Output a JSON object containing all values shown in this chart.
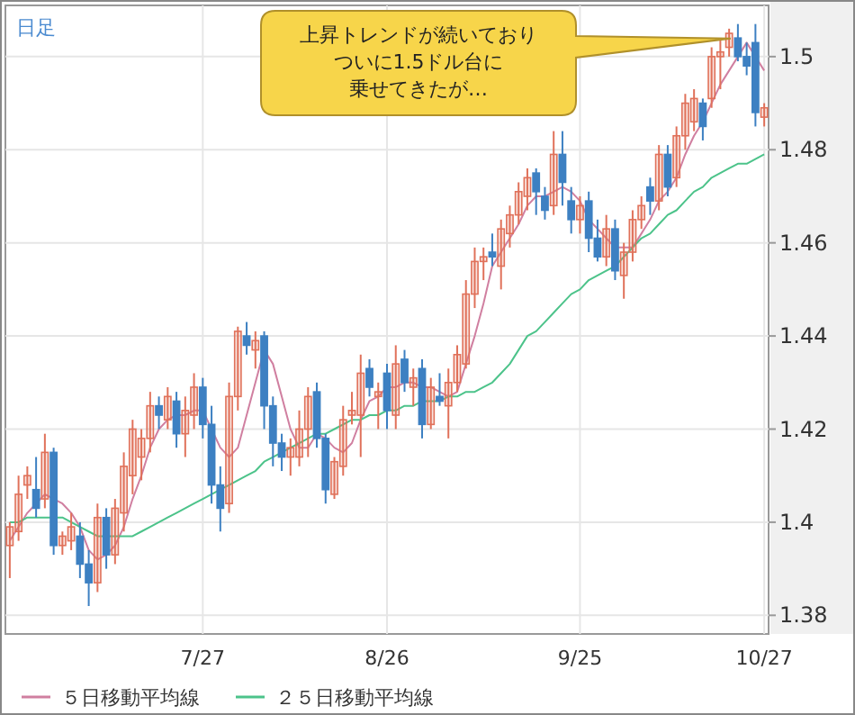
{
  "chart_data": {
    "type": "candlestick",
    "subtitle": "日足",
    "annotations": [
      "上昇トレンドが続いており",
      "ついに1.5ドル台に",
      "乗せてきたが…"
    ],
    "categories": [
      null,
      null,
      null,
      null,
      null,
      null,
      null,
      null,
      null,
      null,
      null,
      null,
      null,
      null,
      null,
      null,
      null,
      null,
      null,
      null,
      null,
      null,
      "7/27",
      null,
      null,
      null,
      null,
      null,
      null,
      null,
      null,
      null,
      null,
      null,
      null,
      null,
      null,
      null,
      null,
      null,
      null,
      null,
      null,
      "8/26",
      null,
      null,
      null,
      null,
      null,
      null,
      null,
      null,
      null,
      null,
      null,
      null,
      null,
      null,
      null,
      null,
      null,
      null,
      null,
      null,
      null,
      "9/25",
      null,
      null,
      null,
      null,
      null,
      null,
      null,
      null,
      null,
      null,
      null,
      null,
      null,
      null,
      null,
      null,
      null,
      null,
      null,
      null,
      "10/27"
    ],
    "colors": [
      "#e0715a",
      "#e0715a",
      "#e0715a",
      "#3d80c2",
      "#e0715a",
      "#3d80c2",
      "#e0715a",
      "#e0715a",
      "#3d80c2",
      "#3d80c2",
      "#e0715a",
      "#3d80c2",
      "#e0715a",
      "#e0715a",
      "#e0715a",
      "#e0715a",
      "#e0715a",
      "#3d80c2",
      "#e0715a",
      "#3d80c2",
      "#e0715a",
      "#e0715a",
      "#3d80c2",
      "#3d80c2",
      "#3d80c2",
      "#e0715a",
      "#e0715a",
      "#3d80c2",
      "#e0715a",
      "#3d80c2",
      "#3d80c2",
      "#3d80c2",
      "#e0715a",
      "#e0715a",
      "#e0715a",
      "#3d80c2",
      "#3d80c2",
      "#e0715a",
      "#e0715a",
      "#e0715a",
      "#e0715a",
      "#3d80c2",
      "#e0715a",
      "#3d80c2",
      "#e0715a",
      "#3d80c2",
      "#e0715a",
      "#3d80c2",
      "#e0715a",
      "#3d80c2",
      "#e0715a",
      "#e0715a",
      "#e0715a",
      "#e0715a",
      "#e0715a",
      "#3d80c2",
      "#e0715a",
      "#e0715a",
      "#e0715a",
      "#e0715a",
      "#3d80c2",
      "#3d80c2",
      "#e0715a",
      "#3d80c2",
      "#3d80c2",
      "#e0715a",
      "#3d80c2",
      "#3d80c2",
      "#e0715a",
      "#3d80c2",
      "#e0715a",
      "#e0715a",
      "#e0715a",
      "#3d80c2",
      "#e0715a",
      "#3d80c2",
      "#e0715a",
      "#e0715a",
      "#e0715a",
      "#3d80c2",
      "#e0715a",
      "#e0715a",
      "#e0715a",
      "#3d80c2",
      "#3d80c2",
      "#3d80c2",
      "#e0715a"
    ],
    "ohlc": [
      [
        1.395,
        1.4,
        1.388,
        1.399
      ],
      [
        1.398,
        1.41,
        1.396,
        1.406
      ],
      [
        1.408,
        1.412,
        1.405,
        1.41
      ],
      [
        1.407,
        1.414,
        1.401,
        1.403
      ],
      [
        1.405,
        1.419,
        1.403,
        1.415
      ],
      [
        1.415,
        1.416,
        1.393,
        1.395
      ],
      [
        1.395,
        1.398,
        1.393,
        1.397
      ],
      [
        1.396,
        1.402,
        1.394,
        1.399
      ],
      [
        1.397,
        1.4,
        1.388,
        1.391
      ],
      [
        1.391,
        1.394,
        1.382,
        1.387
      ],
      [
        1.387,
        1.404,
        1.385,
        1.401
      ],
      [
        1.401,
        1.403,
        1.39,
        1.393
      ],
      [
        1.393,
        1.405,
        1.391,
        1.403
      ],
      [
        1.402,
        1.415,
        1.398,
        1.412
      ],
      [
        1.41,
        1.422,
        1.406,
        1.42
      ],
      [
        1.414,
        1.42,
        1.409,
        1.418
      ],
      [
        1.418,
        1.428,
        1.415,
        1.425
      ],
      [
        1.425,
        1.427,
        1.42,
        1.423
      ],
      [
        1.422,
        1.429,
        1.42,
        1.427
      ],
      [
        1.426,
        1.428,
        1.416,
        1.419
      ],
      [
        1.419,
        1.427,
        1.414,
        1.424
      ],
      [
        1.423,
        1.432,
        1.42,
        1.429
      ],
      [
        1.429,
        1.431,
        1.418,
        1.421
      ],
      [
        1.421,
        1.425,
        1.404,
        1.408
      ],
      [
        1.408,
        1.412,
        1.398,
        1.403
      ],
      [
        1.404,
        1.43,
        1.402,
        1.427
      ],
      [
        1.427,
        1.442,
        1.424,
        1.441
      ],
      [
        1.44,
        1.443,
        1.436,
        1.438
      ],
      [
        1.437,
        1.441,
        1.433,
        1.439
      ],
      [
        1.44,
        1.441,
        1.42,
        1.425
      ],
      [
        1.425,
        1.427,
        1.412,
        1.417
      ],
      [
        1.417,
        1.419,
        1.411,
        1.414
      ],
      [
        1.414,
        1.418,
        1.41,
        1.416
      ],
      [
        1.414,
        1.424,
        1.412,
        1.42
      ],
      [
        1.42,
        1.429,
        1.414,
        1.427
      ],
      [
        1.428,
        1.43,
        1.416,
        1.418
      ],
      [
        1.418,
        1.419,
        1.404,
        1.407
      ],
      [
        1.406,
        1.414,
        1.405,
        1.413
      ],
      [
        1.412,
        1.425,
        1.41,
        1.422
      ],
      [
        1.423,
        1.428,
        1.421,
        1.424
      ],
      [
        1.423,
        1.436,
        1.414,
        1.432
      ],
      [
        1.433,
        1.435,
        1.427,
        1.429
      ],
      [
        1.427,
        1.43,
        1.42,
        1.428
      ],
      [
        1.432,
        1.434,
        1.42,
        1.424
      ],
      [
        1.423,
        1.438,
        1.42,
        1.434
      ],
      [
        1.435,
        1.437,
        1.428,
        1.43
      ],
      [
        1.429,
        1.433,
        1.425,
        1.431
      ],
      [
        1.433,
        1.435,
        1.418,
        1.421
      ],
      [
        1.421,
        1.431,
        1.42,
        1.429
      ],
      [
        1.427,
        1.432,
        1.425,
        1.426
      ],
      [
        1.425,
        1.433,
        1.418,
        1.43
      ],
      [
        1.43,
        1.438,
        1.428,
        1.436
      ],
      [
        1.434,
        1.452,
        1.433,
        1.449
      ],
      [
        1.449,
        1.459,
        1.446,
        1.456
      ],
      [
        1.456,
        1.459,
        1.452,
        1.457
      ],
      [
        1.458,
        1.462,
        1.455,
        1.457
      ],
      [
        1.455,
        1.465,
        1.45,
        1.463
      ],
      [
        1.462,
        1.468,
        1.459,
        1.466
      ],
      [
        1.466,
        1.473,
        1.464,
        1.471
      ],
      [
        1.47,
        1.476,
        1.467,
        1.474
      ],
      [
        1.475,
        1.476,
        1.466,
        1.471
      ],
      [
        1.47,
        1.472,
        1.465,
        1.467
      ],
      [
        1.468,
        1.484,
        1.466,
        1.479
      ],
      [
        1.479,
        1.484,
        1.468,
        1.473
      ],
      [
        1.469,
        1.472,
        1.462,
        1.465
      ],
      [
        1.465,
        1.47,
        1.462,
        1.468
      ],
      [
        1.469,
        1.471,
        1.458,
        1.461
      ],
      [
        1.461,
        1.465,
        1.456,
        1.457
      ],
      [
        1.457,
        1.466,
        1.455,
        1.463
      ],
      [
        1.463,
        1.465,
        1.452,
        1.454
      ],
      [
        1.453,
        1.46,
        1.448,
        1.458
      ],
      [
        1.458,
        1.467,
        1.456,
        1.465
      ],
      [
        1.465,
        1.47,
        1.463,
        1.468
      ],
      [
        1.472,
        1.474,
        1.466,
        1.469
      ],
      [
        1.469,
        1.481,
        1.467,
        1.479
      ],
      [
        1.479,
        1.481,
        1.47,
        1.472
      ],
      [
        1.474,
        1.485,
        1.472,
        1.483
      ],
      [
        1.483,
        1.492,
        1.48,
        1.49
      ],
      [
        1.486,
        1.493,
        1.484,
        1.491
      ],
      [
        1.49,
        1.491,
        1.482,
        1.485
      ],
      [
        1.491,
        1.502,
        1.489,
        1.5
      ],
      [
        1.5,
        1.504,
        1.493,
        1.501
      ],
      [
        1.502,
        1.506,
        1.5,
        1.505
      ],
      [
        1.504,
        1.507,
        1.499,
        1.5
      ],
      [
        1.5,
        1.503,
        1.496,
        1.498
      ],
      [
        1.503,
        1.507,
        1.485,
        1.488
      ],
      [
        1.487,
        1.49,
        1.485,
        1.489
      ]
    ],
    "series": [
      {
        "type": "line",
        "name": "５日移動平均線",
        "color": "#d07fa0",
        "values": [
          1.396,
          1.399,
          1.402,
          1.404,
          1.406,
          1.405,
          1.404,
          1.402,
          1.399,
          1.394,
          1.392,
          1.393,
          1.395,
          1.399,
          1.405,
          1.41,
          1.416,
          1.42,
          1.422,
          1.423,
          1.423,
          1.424,
          1.424,
          1.42,
          1.416,
          1.414,
          1.416,
          1.423,
          1.43,
          1.437,
          1.434,
          1.427,
          1.42,
          1.416,
          1.416,
          1.419,
          1.418,
          1.416,
          1.415,
          1.417,
          1.422,
          1.426,
          1.427,
          1.429,
          1.429,
          1.43,
          1.43,
          1.429,
          1.429,
          1.428,
          1.427,
          1.428,
          1.434,
          1.44,
          1.447,
          1.455,
          1.458,
          1.461,
          1.464,
          1.468,
          1.47,
          1.47,
          1.471,
          1.472,
          1.471,
          1.469,
          1.465,
          1.463,
          1.461,
          1.459,
          1.459,
          1.459,
          1.462,
          1.465,
          1.469,
          1.471,
          1.474,
          1.479,
          1.483,
          1.486,
          1.49,
          1.494,
          1.497,
          1.5,
          1.503,
          1.5,
          1.497
        ]
      },
      {
        "type": "line",
        "name": "２５日移動平均線",
        "color": "#4cc38a",
        "values": [
          1.4,
          1.4,
          1.401,
          1.401,
          1.401,
          1.401,
          1.401,
          1.4,
          1.399,
          1.398,
          1.397,
          1.397,
          1.397,
          1.397,
          1.397,
          1.398,
          1.399,
          1.4,
          1.401,
          1.402,
          1.403,
          1.404,
          1.405,
          1.406,
          1.407,
          1.408,
          1.409,
          1.41,
          1.411,
          1.413,
          1.414,
          1.415,
          1.416,
          1.417,
          1.418,
          1.419,
          1.419,
          1.42,
          1.421,
          1.422,
          1.422,
          1.423,
          1.423,
          1.424,
          1.424,
          1.425,
          1.425,
          1.426,
          1.426,
          1.426,
          1.427,
          1.427,
          1.428,
          1.428,
          1.429,
          1.43,
          1.432,
          1.434,
          1.437,
          1.44,
          1.441,
          1.443,
          1.445,
          1.447,
          1.449,
          1.45,
          1.452,
          1.453,
          1.454,
          1.455,
          1.457,
          1.459,
          1.461,
          1.462,
          1.464,
          1.466,
          1.467,
          1.469,
          1.471,
          1.472,
          1.474,
          1.475,
          1.476,
          1.477,
          1.477,
          1.478,
          1.479
        ]
      }
    ],
    "ylim": [
      1.376,
      1.511
    ],
    "yticks": [
      1.38,
      1.4,
      1.42,
      1.44,
      1.46,
      1.48,
      1.5
    ],
    "grid": true,
    "legend": "bottom"
  }
}
